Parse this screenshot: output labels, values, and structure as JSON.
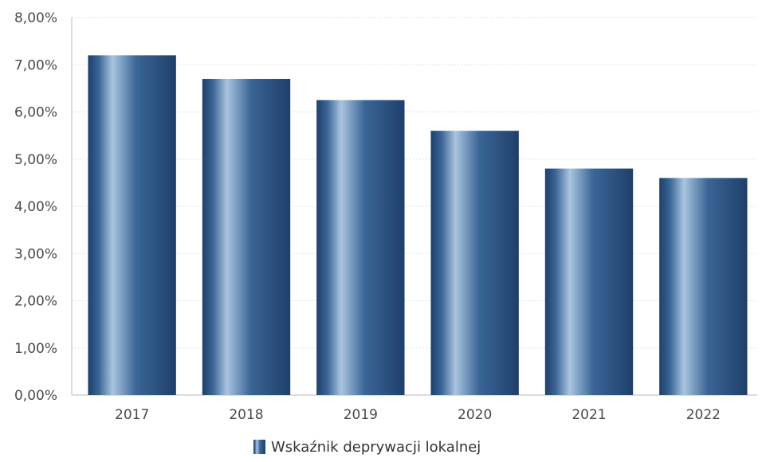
{
  "chart_data": {
    "type": "bar",
    "categories": [
      "2017",
      "2018",
      "2019",
      "2020",
      "2021",
      "2022"
    ],
    "series": [
      {
        "name": "Wskaźnik deprywacji lokalnej",
        "values": [
          7.2,
          6.7,
          6.25,
          5.6,
          4.8,
          4.6
        ]
      }
    ],
    "ylim": [
      0,
      8
    ],
    "yticks": [
      0,
      1,
      2,
      3,
      4,
      5,
      6,
      7,
      8
    ],
    "ytick_labels": [
      "0,00%",
      "1,00%",
      "2,00%",
      "3,00%",
      "4,00%",
      "5,00%",
      "6,00%",
      "7,00%",
      "8,00%"
    ],
    "grid": true,
    "legend_position": "bottom-center",
    "colors": {
      "bar_dark": "#1f3f6a",
      "bar_mid": "#3a6596",
      "bar_light": "#a9c4df",
      "grid": "#e2e2e2",
      "axis": "#b8b8b8"
    }
  }
}
